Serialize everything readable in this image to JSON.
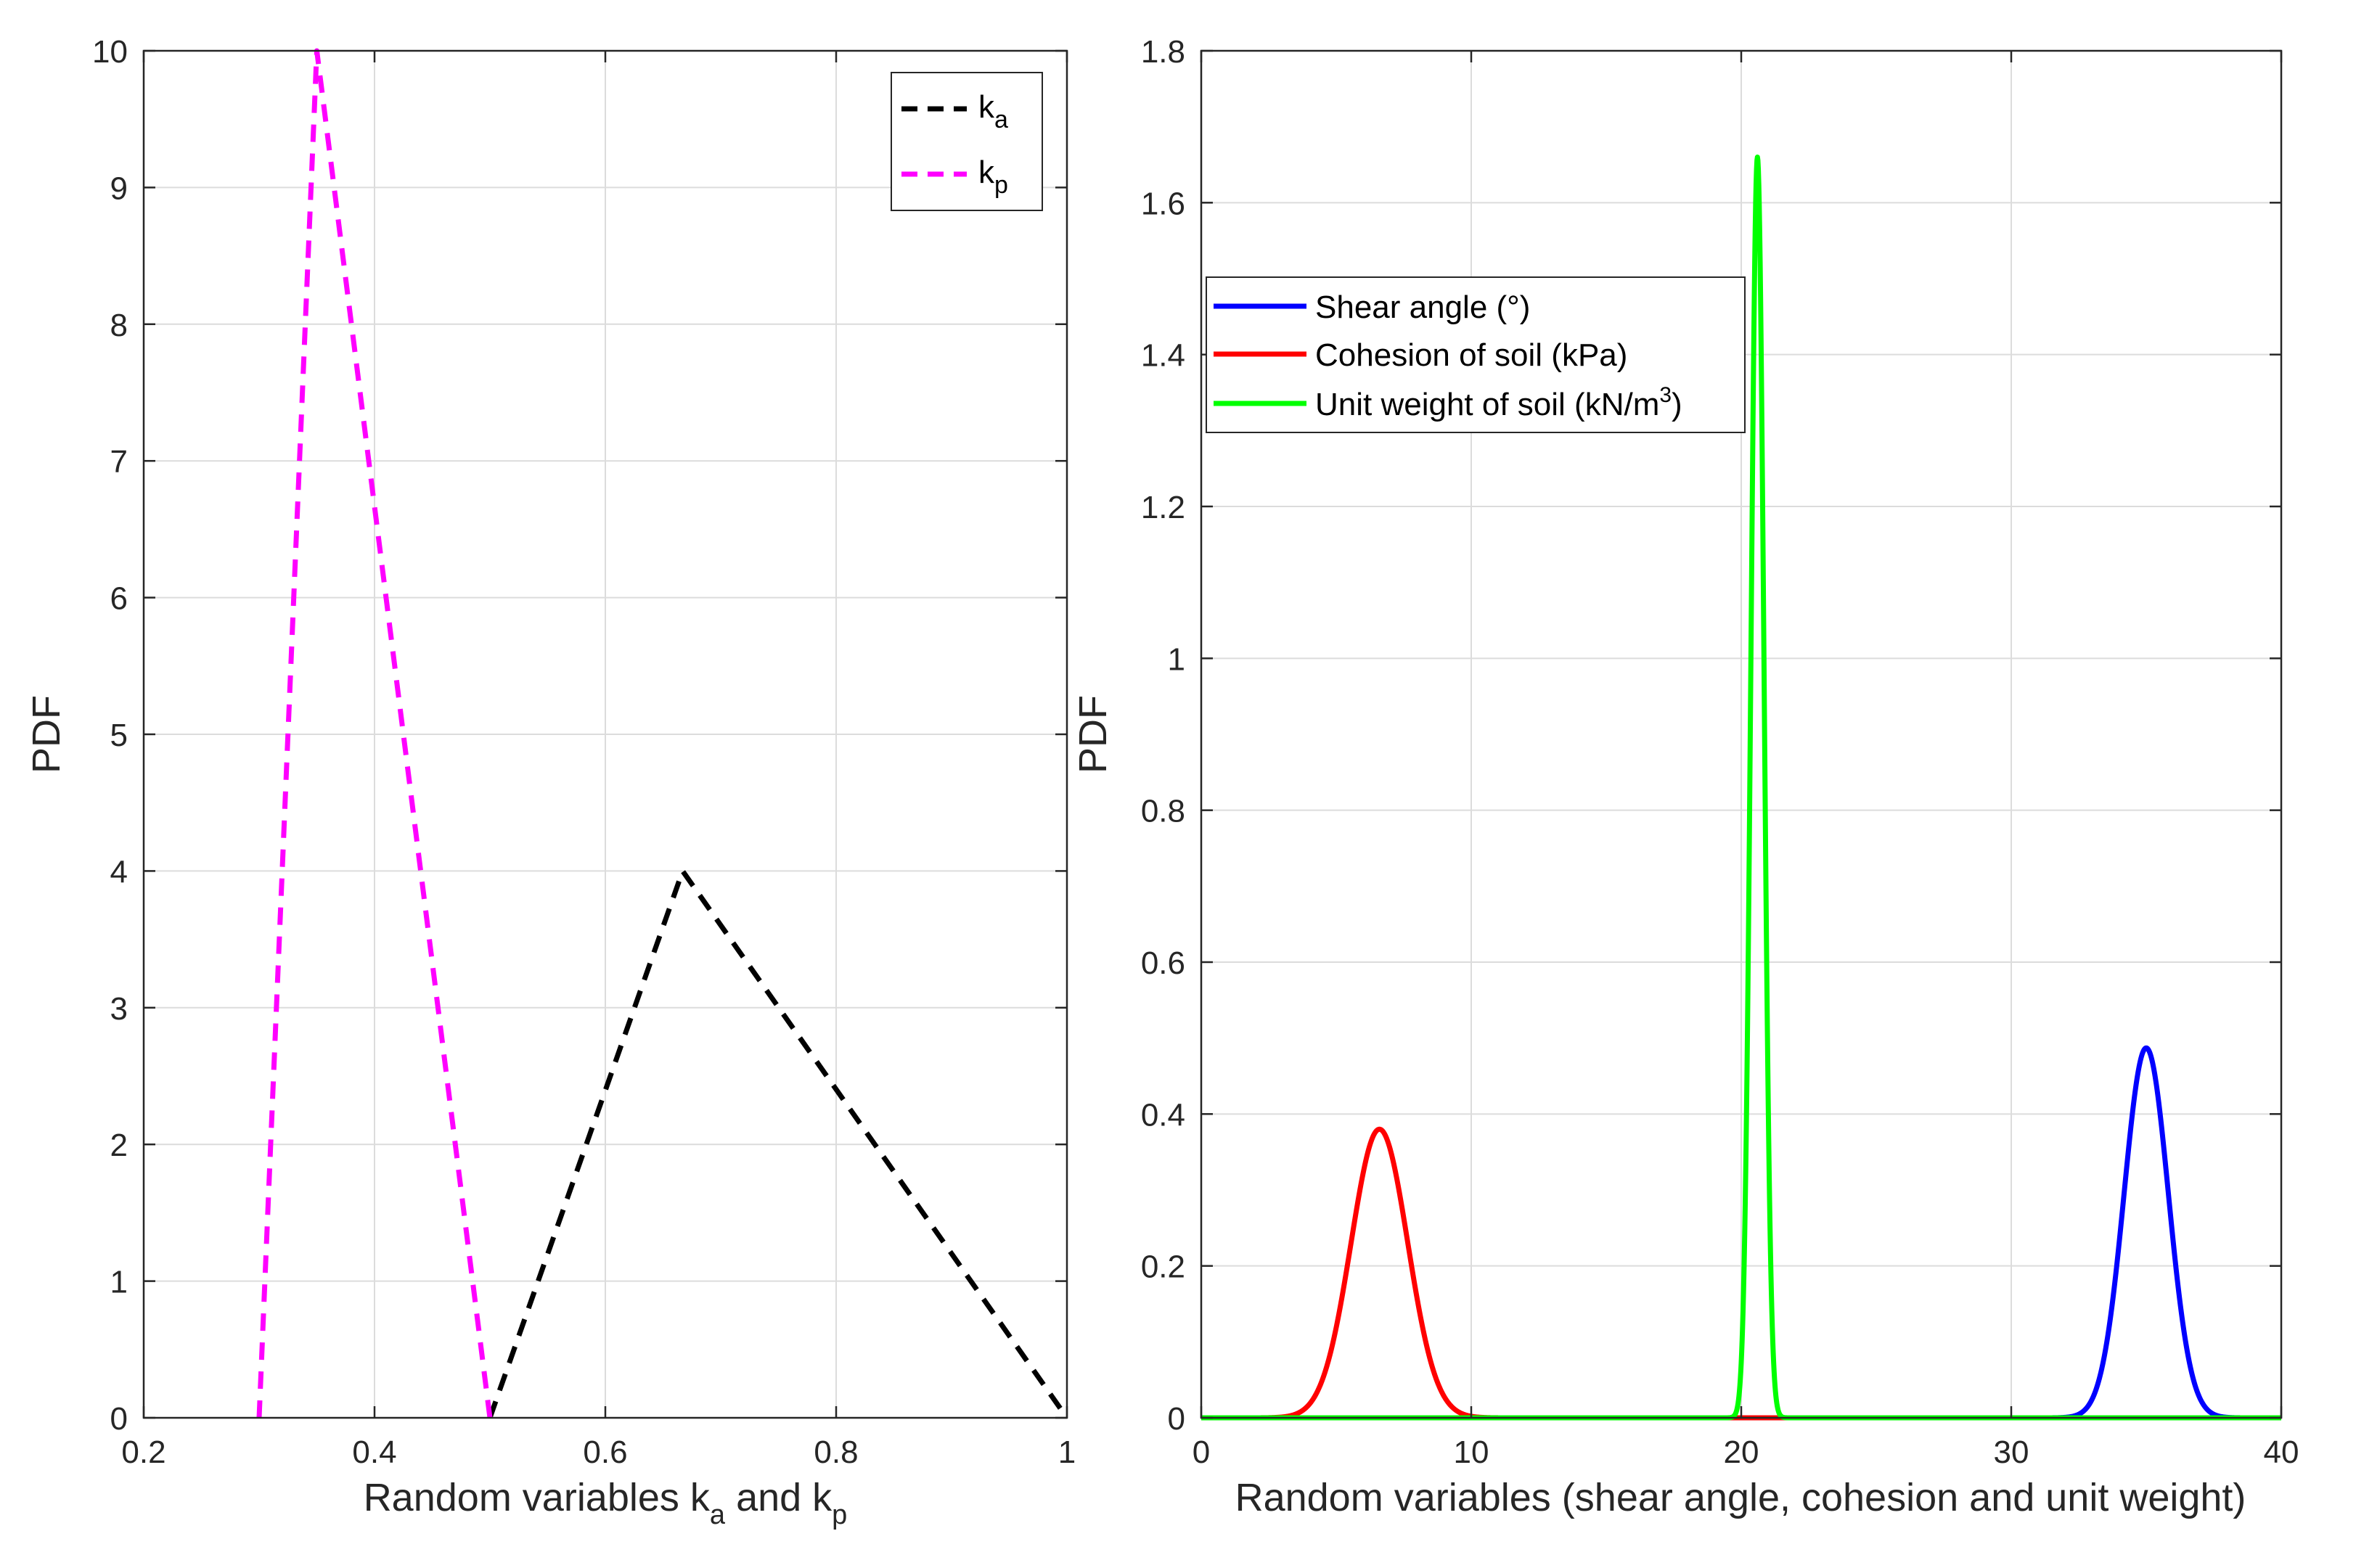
{
  "chart_data": [
    {
      "type": "line",
      "title": "",
      "xlabel": "Random variables k",
      "xlabel_sub_a": "a",
      "xlabel_and": " and k",
      "xlabel_sub_p": "p",
      "ylabel": "PDF",
      "xlim": [
        0.2,
        1
      ],
      "ylim": [
        0,
        10
      ],
      "xticks": [
        0.2,
        0.4,
        0.6,
        0.8,
        1
      ],
      "xtick_labels": [
        "0.2",
        "0.4",
        "0.6",
        "0.8",
        "1"
      ],
      "yticks": [
        0,
        1,
        2,
        3,
        4,
        5,
        6,
        7,
        8,
        9,
        10
      ],
      "ytick_labels": [
        "0",
        "1",
        "2",
        "3",
        "4",
        "5",
        "6",
        "7",
        "8",
        "9",
        "10"
      ],
      "grid": true,
      "legend_position": "top-right",
      "series": [
        {
          "name": "k",
          "sub": "a",
          "color": "#000000",
          "style": "dashed",
          "x": [
            0.5,
            0.667,
            1.0
          ],
          "y": [
            0,
            4.0,
            0
          ]
        },
        {
          "name": "k",
          "sub": "p",
          "color": "#ff00ff",
          "style": "dashed",
          "x": [
            0.3,
            0.35,
            0.5
          ],
          "y": [
            0,
            10.0,
            0
          ]
        }
      ]
    },
    {
      "type": "line",
      "title": "",
      "xlabel": "Random variables (shear angle, cohesion and unit weight)",
      "ylabel": "PDF",
      "xlim": [
        0,
        40
      ],
      "ylim": [
        0,
        1.8
      ],
      "xticks": [
        0,
        10,
        20,
        30,
        40
      ],
      "xtick_labels": [
        "0",
        "10",
        "20",
        "30",
        "40"
      ],
      "yticks": [
        0,
        0.2,
        0.4,
        0.6,
        0.8,
        1.0,
        1.2,
        1.4,
        1.6,
        1.8
      ],
      "ytick_labels": [
        "0",
        "0.2",
        "0.4",
        "0.6",
        "0.8",
        "1",
        "1.2",
        "1.4",
        "1.6",
        "1.8"
      ],
      "grid": true,
      "legend_position": "upper-left",
      "series": [
        {
          "name": "Shear angle (°)",
          "color": "#0000ff",
          "distribution": "normal",
          "mean": 35,
          "std": 0.82,
          "peak": 0.487
        },
        {
          "name": "Cohesion of soil (kPa)",
          "color": "#ff0000",
          "distribution": "normal",
          "mean": 6.6,
          "std": 1.05,
          "peak": 0.38
        },
        {
          "name": "Unit weight of soil (kN/m",
          "name_sup": "3",
          "name_end": ")",
          "color": "#00ff00",
          "distribution": "normal",
          "mean": 20.6,
          "std": 0.24,
          "peak": 1.66
        }
      ]
    }
  ]
}
